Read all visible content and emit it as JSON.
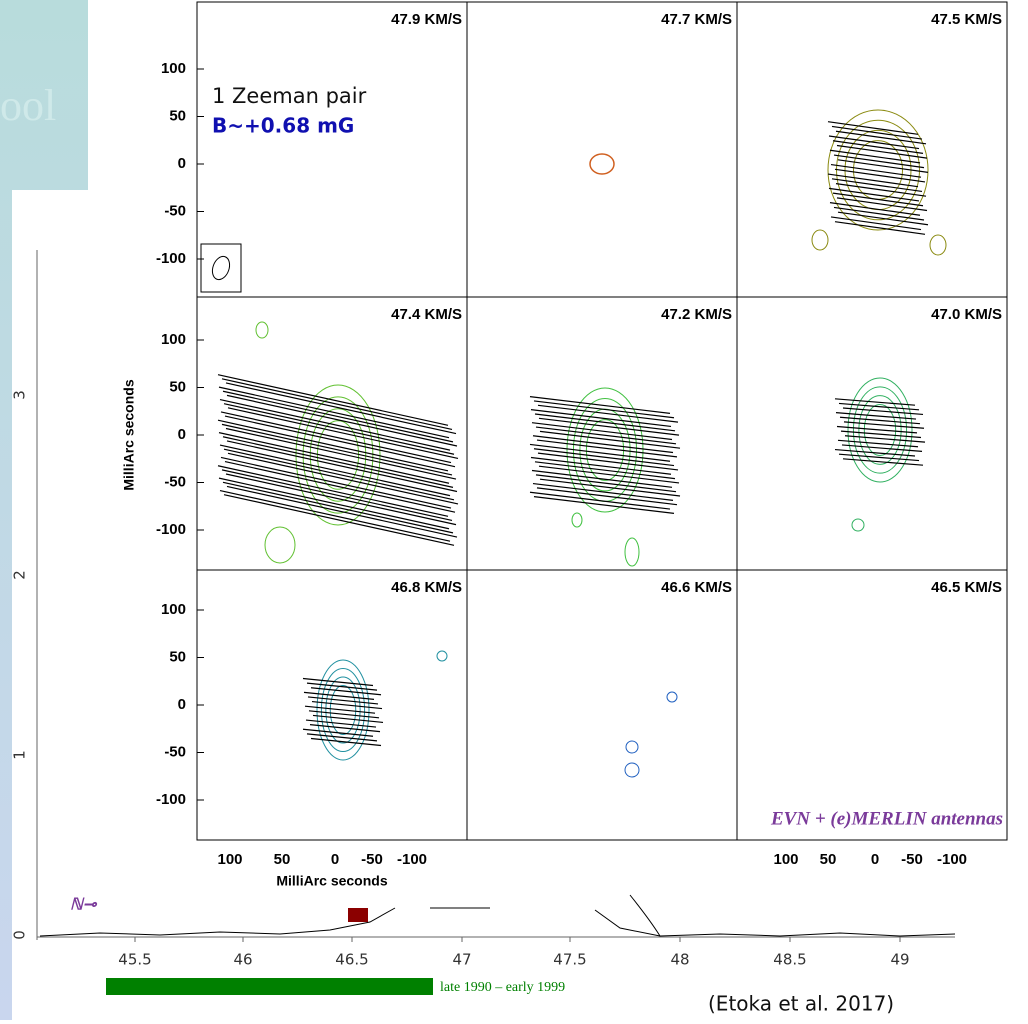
{
  "background_text": "ool",
  "panels": [
    {
      "label": "47.9 KM/S"
    },
    {
      "label": "47.7 KM/S"
    },
    {
      "label": "47.5 KM/S"
    },
    {
      "label": "47.4 KM/S"
    },
    {
      "label": "47.2 KM/S"
    },
    {
      "label": "47.0 KM/S"
    },
    {
      "label": "46.8 KM/S"
    },
    {
      "label": "46.6 KM/S"
    },
    {
      "label": "46.5 KM/S"
    }
  ],
  "y_ticks": [
    "100",
    "50",
    "0",
    "-50",
    "-100"
  ],
  "x_ticks": [
    "100",
    "50",
    "0",
    "-50",
    "-100"
  ],
  "y_axis_label": "MilliArc seconds",
  "x_axis_label": "MilliArc seconds",
  "annotation": {
    "line1": "1 Zeeman pair",
    "line2": "B~+0.68 mG"
  },
  "antennas": "EVN + (e)MERLIN antennas",
  "spectrum": {
    "x_ticks": [
      "45.5",
      "46",
      "46.5",
      "47",
      "47.5",
      "48",
      "48.5",
      "49"
    ],
    "y_ticks": [
      "0",
      "1",
      "2",
      "3"
    ],
    "legend": "late 1990 – early 1999"
  },
  "citation": "(Etoka et al. 2017)"
}
